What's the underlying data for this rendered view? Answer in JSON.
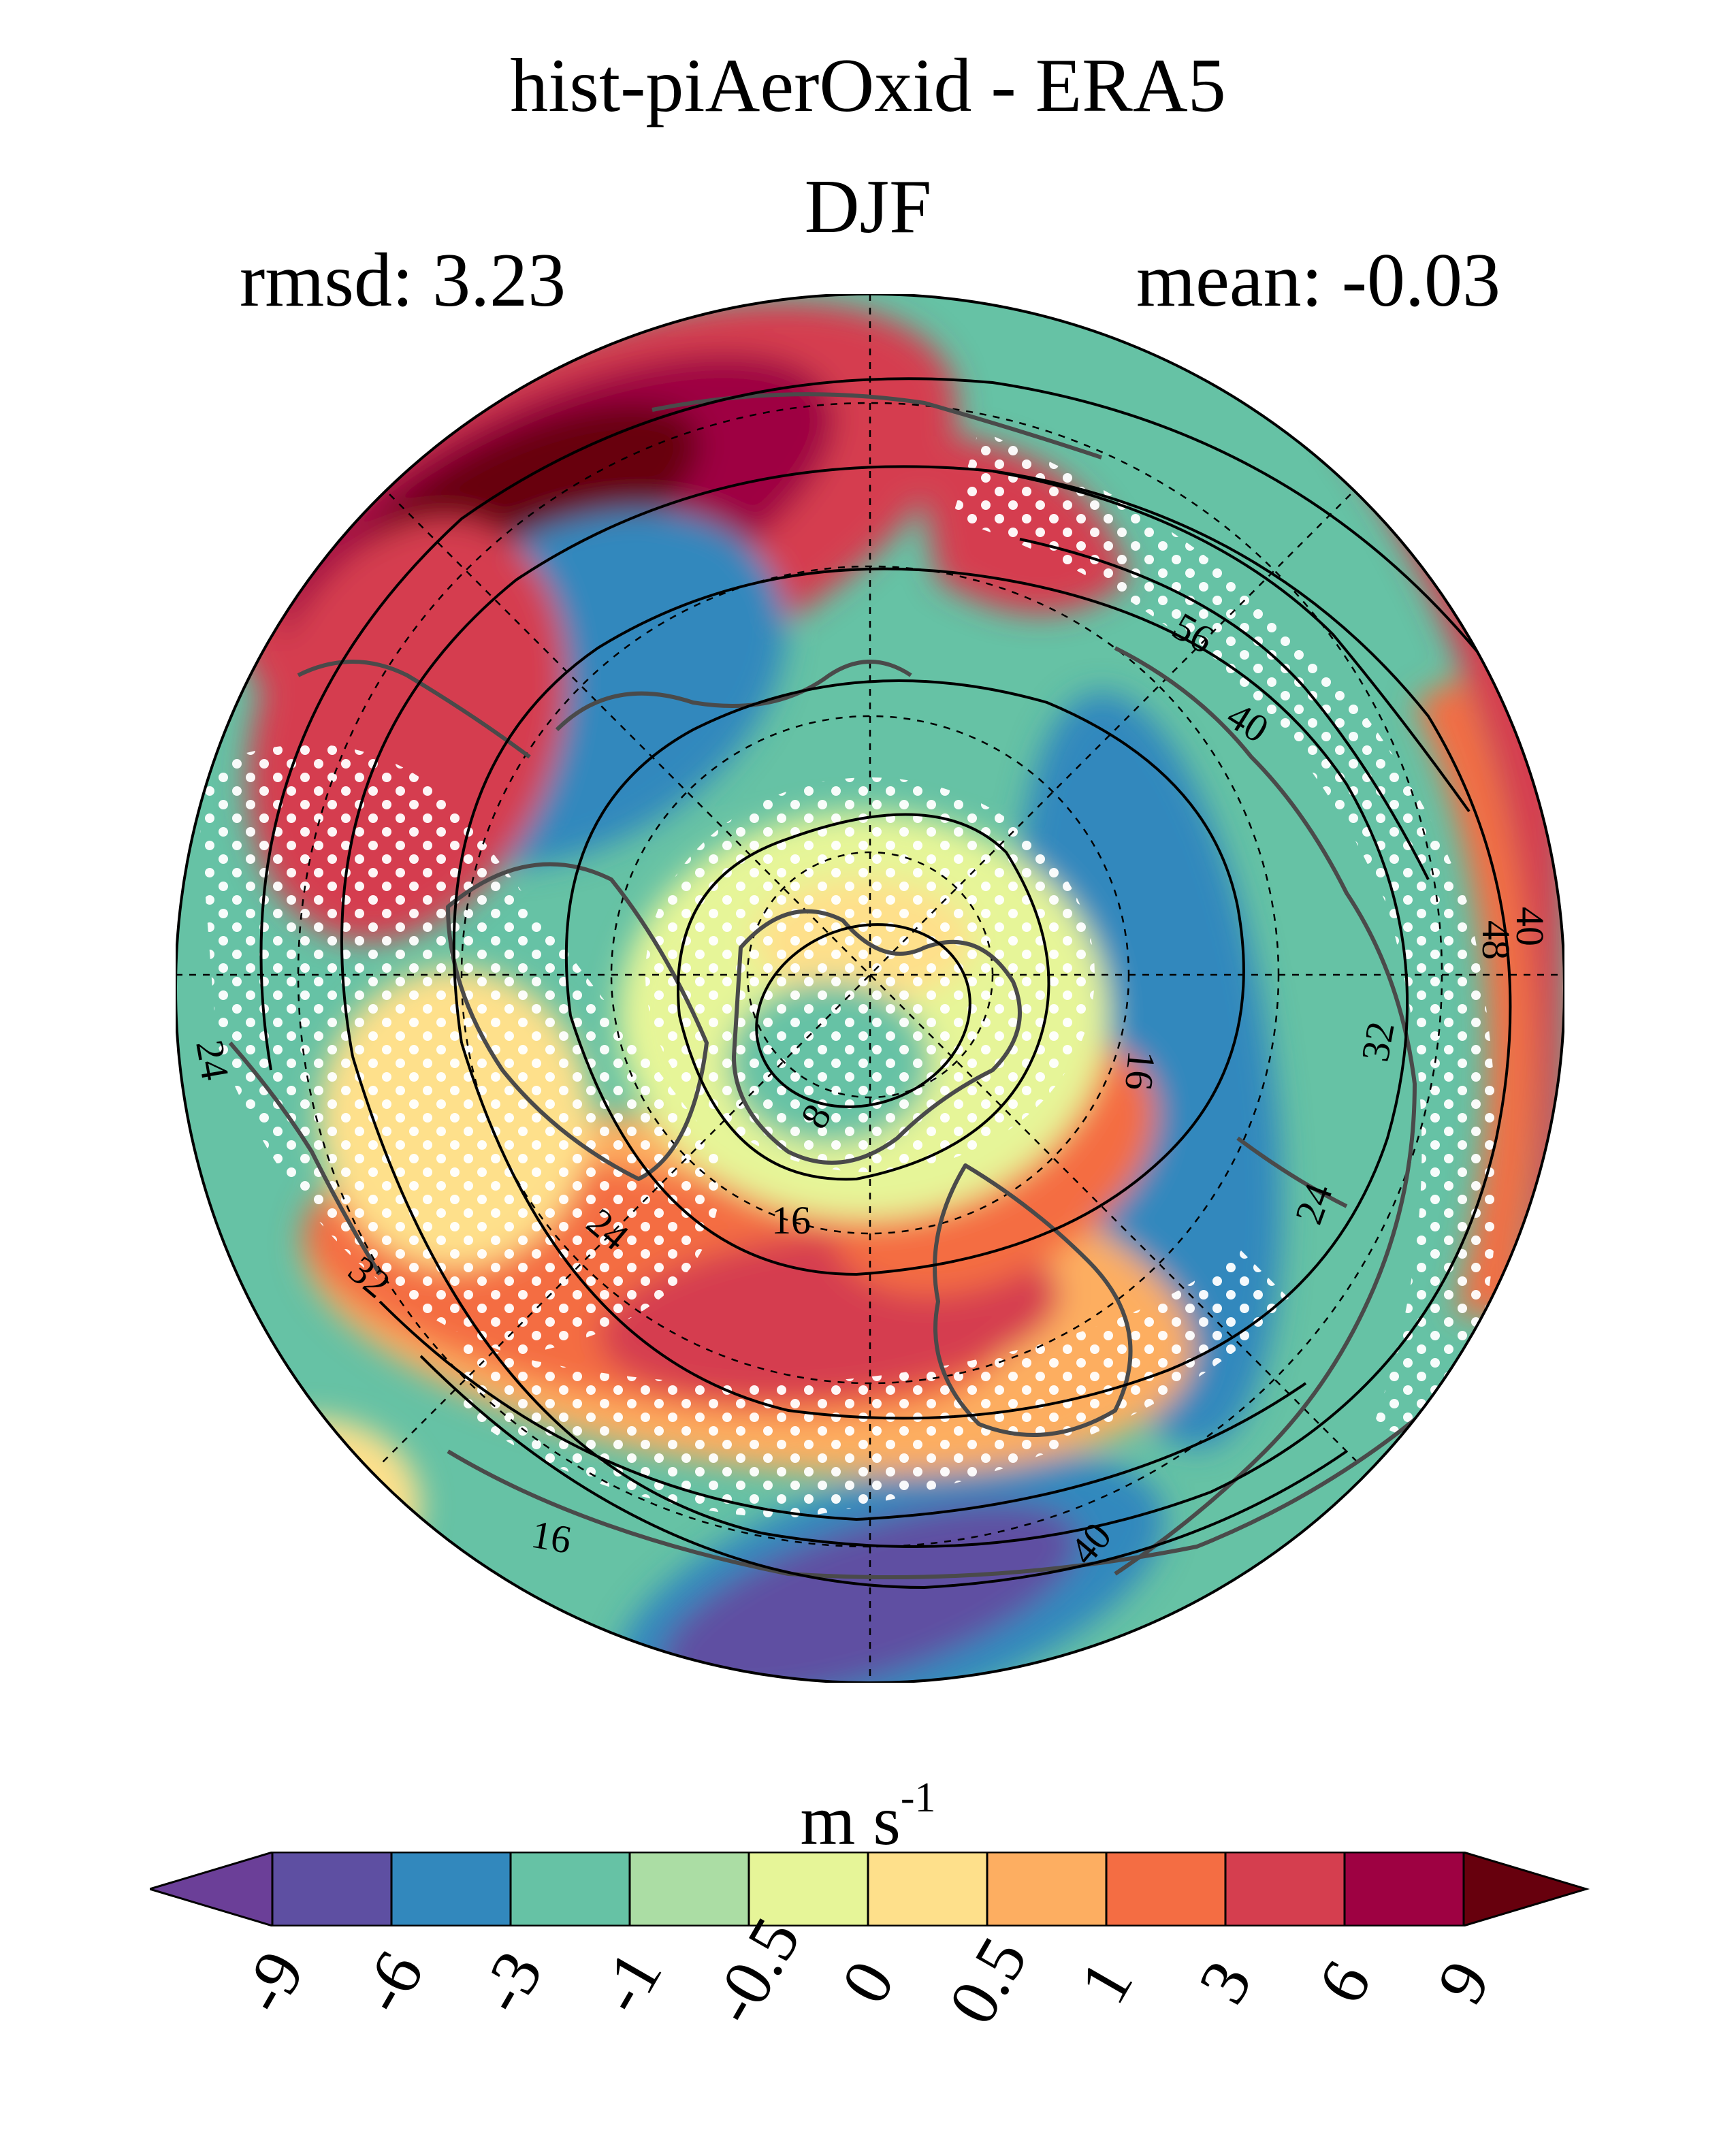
{
  "title": "hist-piAerOxid - ERA5",
  "subtitle": "DJF",
  "stats": {
    "rmsd": "rmsd: 3.23",
    "mean": "mean: -0.03"
  },
  "colorbar": {
    "units_base": "m s",
    "units_exp": "-1",
    "ticks": [
      "-9",
      "-6",
      "-3",
      "-1",
      "-0.5",
      "0",
      "0.5",
      "1",
      "3",
      "6",
      "9"
    ],
    "colors": [
      "#6b3f98",
      "#5e4fa2",
      "#3288bd",
      "#66c2a5",
      "#abdda4",
      "#e6f598",
      "#fee08b",
      "#fdae61",
      "#f46d43",
      "#d53e4f",
      "#9e0142",
      "#67000d"
    ]
  },
  "contour_labels": [
    "56",
    "40",
    "40",
    "48",
    "32",
    "24",
    "16",
    "8",
    "16",
    "24",
    "24",
    "32",
    "16",
    "40"
  ],
  "projection": "north-polar-stereographic",
  "stippling": "white dots"
}
